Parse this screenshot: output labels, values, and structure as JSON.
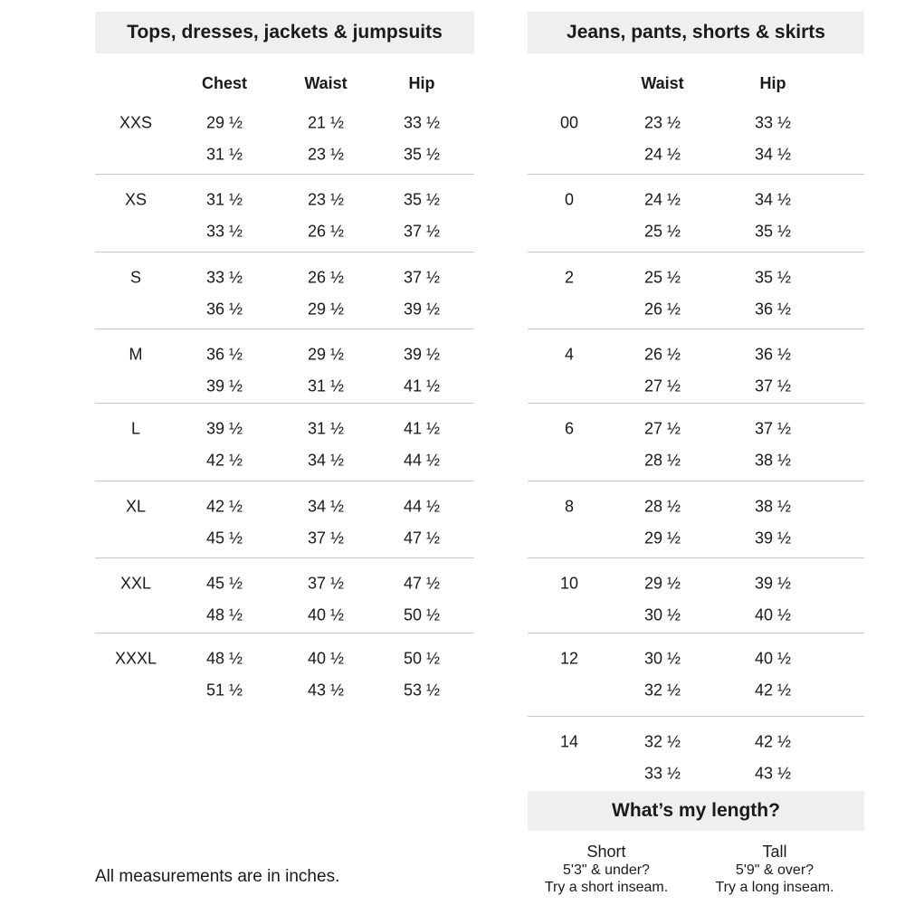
{
  "tops": {
    "title": "Tops, dresses, jackets & jumpsuits",
    "headers": [
      "Chest",
      "Waist",
      "Hip"
    ],
    "rows": [
      {
        "size": "XXS",
        "chest": [
          "29 ½",
          "31 ½"
        ],
        "waist": [
          "21 ½",
          "23 ½"
        ],
        "hip": [
          "33 ½",
          "35 ½"
        ]
      },
      {
        "size": "XS",
        "chest": [
          "31 ½",
          "33 ½"
        ],
        "waist": [
          "23 ½",
          "26 ½"
        ],
        "hip": [
          "35 ½",
          "37 ½"
        ]
      },
      {
        "size": "S",
        "chest": [
          "33 ½",
          "36 ½"
        ],
        "waist": [
          "26 ½",
          "29 ½"
        ],
        "hip": [
          "37 ½",
          "39 ½"
        ]
      },
      {
        "size": "M",
        "chest": [
          "36 ½",
          "39 ½"
        ],
        "waist": [
          "29 ½",
          "31 ½"
        ],
        "hip": [
          "39 ½",
          "41 ½"
        ]
      },
      {
        "size": "L",
        "chest": [
          "39 ½",
          "42 ½"
        ],
        "waist": [
          "31 ½",
          "34 ½"
        ],
        "hip": [
          "41 ½",
          "44 ½"
        ]
      },
      {
        "size": "XL",
        "chest": [
          "42 ½",
          "45 ½"
        ],
        "waist": [
          "34 ½",
          "37 ½"
        ],
        "hip": [
          "44 ½",
          "47 ½"
        ]
      },
      {
        "size": "XXL",
        "chest": [
          "45 ½",
          "48 ½"
        ],
        "waist": [
          "37 ½",
          "40 ½"
        ],
        "hip": [
          "47 ½",
          "50 ½"
        ]
      },
      {
        "size": "XXXL",
        "chest": [
          "48 ½",
          "51 ½"
        ],
        "waist": [
          "40 ½",
          "43 ½"
        ],
        "hip": [
          "50 ½",
          "53 ½"
        ]
      }
    ]
  },
  "bottoms": {
    "title": "Jeans, pants, shorts & skirts",
    "headers": [
      "Waist",
      "Hip"
    ],
    "rows": [
      {
        "size": "00",
        "waist": [
          "23 ½",
          "24 ½"
        ],
        "hip": [
          "33 ½",
          "34 ½"
        ]
      },
      {
        "size": "0",
        "waist": [
          "24 ½",
          "25 ½"
        ],
        "hip": [
          "34 ½",
          "35 ½"
        ]
      },
      {
        "size": "2",
        "waist": [
          "25 ½",
          "26 ½"
        ],
        "hip": [
          "35 ½",
          "36 ½"
        ]
      },
      {
        "size": "4",
        "waist": [
          "26 ½",
          "27 ½"
        ],
        "hip": [
          "36 ½",
          "37 ½"
        ]
      },
      {
        "size": "6",
        "waist": [
          "27 ½",
          "28 ½"
        ],
        "hip": [
          "37 ½",
          "38 ½"
        ]
      },
      {
        "size": "8",
        "waist": [
          "28 ½",
          "29 ½"
        ],
        "hip": [
          "38 ½",
          "39 ½"
        ]
      },
      {
        "size": "10",
        "waist": [
          "29 ½",
          "30 ½"
        ],
        "hip": [
          "39 ½",
          "40 ½"
        ]
      },
      {
        "size": "12",
        "waist": [
          "30 ½",
          "32 ½"
        ],
        "hip": [
          "40 ½",
          "42 ½"
        ]
      },
      {
        "size": "14",
        "waist": [
          "32 ½",
          "33 ½"
        ],
        "hip": [
          "42 ½",
          "43 ½"
        ]
      }
    ]
  },
  "length": {
    "title": "What’s my length?",
    "short": {
      "label": "Short",
      "line1": "5'3\" & under?",
      "line2": "Try a short inseam."
    },
    "tall": {
      "label": "Tall",
      "line1": "5'9\" & over?",
      "line2": "Try a long inseam."
    }
  },
  "footnote": "All measurements are in inches.",
  "colors": {
    "title_bar": "#efefef",
    "divider": "#c8c8c8",
    "text": "#1a1a1a"
  }
}
